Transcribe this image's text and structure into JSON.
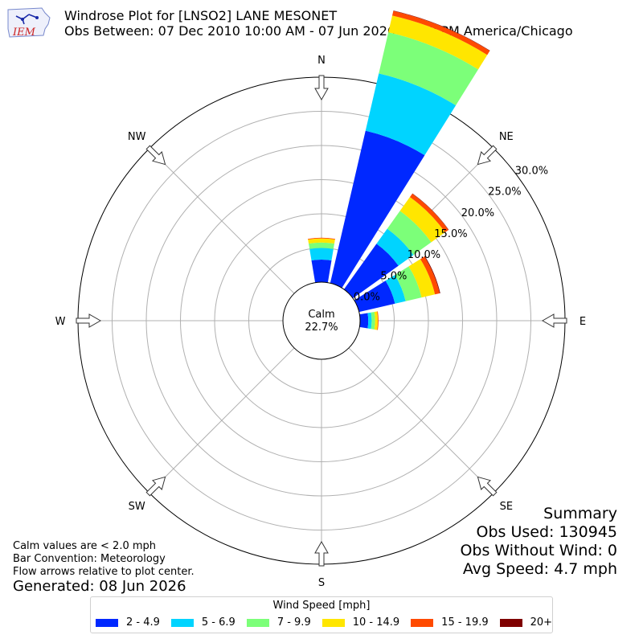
{
  "header": {
    "title_line1": "Windrose Plot for [LNSO2] LANE MESONET",
    "title_line2": "Obs Between: 07 Dec 2010 10:00 AM - 07 Jun 2026 06:00 PM America/Chicago",
    "logo_text": "IEM"
  },
  "chart_data": {
    "type": "windrose",
    "directions": [
      "N",
      "NNE",
      "NE",
      "ENE",
      "E",
      "ESE",
      "SE",
      "SSE",
      "S",
      "SSW",
      "SW",
      "WSW",
      "W",
      "WNW",
      "NW",
      "NNW"
    ],
    "bins": [
      "2 - 4.9",
      "5 - 6.9",
      "7 - 9.9",
      "10 - 14.9",
      "15 - 19.9",
      "20+"
    ],
    "colors": [
      "#0028ff",
      "#00d4ff",
      "#7cff79",
      "#ffe600",
      "#ff4a00",
      "#7f0000"
    ],
    "values_pct": [
      [
        3.3,
        1.7,
        0.8,
        0.6,
        0.1,
        0.0
      ],
      [
        22.9,
        8.6,
        6.2,
        2.5,
        0.7,
        0.05
      ],
      [
        8.2,
        2.7,
        3.2,
        2.5,
        0.6,
        0.05
      ],
      [
        5.4,
        1.6,
        2.4,
        2.0,
        0.7,
        0.1
      ],
      [
        1.2,
        0.5,
        0.5,
        0.4,
        0.1,
        0.0
      ],
      [
        0,
        0,
        0,
        0,
        0,
        0
      ],
      [
        0,
        0,
        0,
        0,
        0,
        0
      ],
      [
        0,
        0,
        0,
        0,
        0,
        0
      ],
      [
        0,
        0,
        0,
        0,
        0,
        0
      ],
      [
        0,
        0,
        0,
        0,
        0,
        0
      ],
      [
        0,
        0,
        0,
        0,
        0,
        0
      ],
      [
        0,
        0,
        0,
        0,
        0,
        0
      ],
      [
        0,
        0,
        0,
        0,
        0,
        0
      ],
      [
        0,
        0,
        0,
        0,
        0,
        0
      ],
      [
        0,
        0,
        0,
        0,
        0,
        0
      ],
      [
        0,
        0,
        0,
        0,
        0,
        0
      ]
    ],
    "rlim": [
      0,
      30
    ],
    "ring_labels": [
      "0.0%",
      "5.0%",
      "10.0%",
      "15.0%",
      "20.0%",
      "25.0%",
      "30.0%"
    ],
    "compass_labels": [
      "N",
      "NE",
      "E",
      "SE",
      "S",
      "SW",
      "W",
      "NW"
    ],
    "calm_label": "Calm",
    "calm_value": "22.7%",
    "legend_title": "Wind Speed [mph]",
    "legend_placement": "bottom-center",
    "grid": true
  },
  "summary": {
    "title": "Summary",
    "obs_used": "Obs Used: 130945",
    "obs_without_wind": "Obs Without Wind: 0",
    "avg_speed": "Avg Speed: 4.7 mph"
  },
  "notes": {
    "calm": "Calm values are < 2.0 mph",
    "convention": "Bar Convention: Meteorology",
    "arrows": "Flow arrows relative to plot center."
  },
  "generated": "Generated: 08 Jun 2026"
}
